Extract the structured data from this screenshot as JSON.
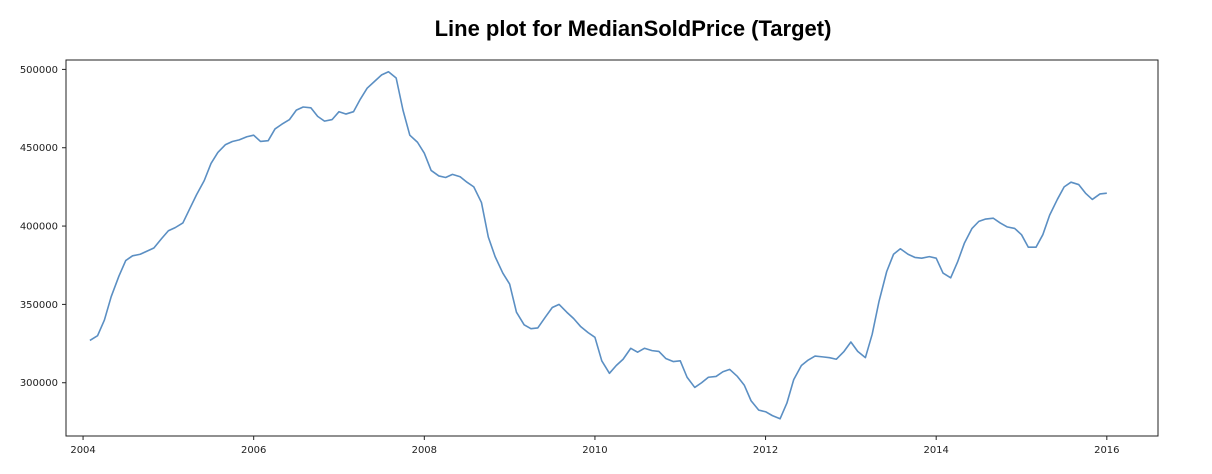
{
  "chart_data": {
    "type": "line",
    "title": "Line plot for MedianSoldPrice (Target)",
    "xlabel": "",
    "ylabel": "",
    "xlim": [
      2003.8,
      2016.6
    ],
    "ylim": [
      266000,
      506000
    ],
    "grid": false,
    "legend": "none",
    "line_color": "#5b8fc3",
    "x_ticks": [
      {
        "value": 2004,
        "label": "2004"
      },
      {
        "value": 2006,
        "label": "2006"
      },
      {
        "value": 2008,
        "label": "2008"
      },
      {
        "value": 2010,
        "label": "2010"
      },
      {
        "value": 2012,
        "label": "2012"
      },
      {
        "value": 2014,
        "label": "2014"
      },
      {
        "value": 2016,
        "label": "2016"
      }
    ],
    "y_ticks": [
      {
        "value": 300000,
        "label": "300000"
      },
      {
        "value": 350000,
        "label": "350000"
      },
      {
        "value": 400000,
        "label": "400000"
      },
      {
        "value": 450000,
        "label": "450000"
      },
      {
        "value": 500000,
        "label": "500000"
      }
    ],
    "series": [
      {
        "x": [
          2004.08,
          2004.17,
          2004.25,
          2004.33,
          2004.42,
          2004.5,
          2004.58,
          2004.67,
          2004.75,
          2004.83,
          2004.92,
          2005,
          2005.08,
          2005.17,
          2005.25,
          2005.33,
          2005.42,
          2005.5,
          2005.58,
          2005.67,
          2005.75,
          2005.83,
          2005.92,
          2006,
          2006.08,
          2006.17,
          2006.25,
          2006.33,
          2006.42,
          2006.5,
          2006.58,
          2006.67,
          2006.75,
          2006.83,
          2006.92,
          2007,
          2007.08,
          2007.17,
          2007.25,
          2007.33,
          2007.42,
          2007.5,
          2007.58,
          2007.67,
          2007.75,
          2007.83,
          2007.92,
          2008,
          2008.08,
          2008.17,
          2008.25,
          2008.33,
          2008.42,
          2008.5,
          2008.58,
          2008.67,
          2008.75,
          2008.83,
          2008.92,
          2009,
          2009.08,
          2009.17,
          2009.25,
          2009.33,
          2009.42,
          2009.5,
          2009.58,
          2009.67,
          2009.75,
          2009.83,
          2009.92,
          2010,
          2010.08,
          2010.17,
          2010.25,
          2010.33,
          2010.42,
          2010.5,
          2010.58,
          2010.67,
          2010.75,
          2010.83,
          2010.92,
          2011,
          2011.08,
          2011.17,
          2011.25,
          2011.33,
          2011.42,
          2011.5,
          2011.58,
          2011.67,
          2011.75,
          2011.83,
          2011.92,
          2012,
          2012.08,
          2012.17,
          2012.25,
          2012.33,
          2012.42,
          2012.5,
          2012.58,
          2012.67,
          2012.75,
          2012.83,
          2012.92,
          2013,
          2013.08,
          2013.17,
          2013.25,
          2013.33,
          2013.42,
          2013.5,
          2013.58,
          2013.67,
          2013.75,
          2013.83,
          2013.92,
          2014,
          2014.08,
          2014.17,
          2014.25,
          2014.33,
          2014.42,
          2014.5,
          2014.58,
          2014.67,
          2014.75,
          2014.83,
          2014.92,
          2015,
          2015.08,
          2015.17,
          2015.25,
          2015.33,
          2015.42,
          2015.5,
          2015.58,
          2015.67,
          2015.75,
          2015.83,
          2015.92,
          2016
        ],
        "values": [
          327000,
          330000,
          340000,
          355000,
          368000,
          378000,
          381000,
          382000,
          384000,
          386000,
          392000,
          397000,
          399000,
          402000,
          411000,
          420000,
          429000,
          440000,
          447000,
          452000,
          454000,
          455000,
          457000,
          458000,
          454000,
          454500,
          462000,
          465000,
          468000,
          474000,
          476000,
          475500,
          470000,
          467000,
          468000,
          473000,
          471500,
          473000,
          481000,
          488000,
          492500,
          496500,
          498500,
          494500,
          474000,
          458000,
          453500,
          446500,
          435500,
          432000,
          431000,
          433000,
          431500,
          428000,
          425000,
          415000,
          393000,
          380500,
          370000,
          363000,
          345000,
          337000,
          334500,
          335000,
          342000,
          348000,
          350000,
          345000,
          341000,
          336000,
          332000,
          329000,
          314000,
          306000,
          311000,
          315000,
          322000,
          319500,
          322000,
          320500,
          320000,
          315500,
          313500,
          314000,
          303500,
          297000,
          300000,
          303500,
          304000,
          307000,
          308500,
          304000,
          298500,
          288500,
          282500,
          281500,
          279000,
          277000,
          287000,
          302000,
          311000,
          314500,
          317000,
          316500,
          316000,
          315000,
          320000,
          326000,
          320000,
          316000,
          331000,
          352000,
          371000,
          382000,
          385500,
          382000,
          380000,
          379500,
          380500,
          379500,
          370000,
          367000,
          377000,
          389000,
          398500,
          403000,
          404500,
          405000,
          402000,
          399500,
          398500,
          394500,
          386500,
          386500,
          394500,
          407000,
          417000,
          425000,
          428000,
          426500,
          421000,
          417000,
          420500,
          421000
        ]
      }
    ]
  }
}
